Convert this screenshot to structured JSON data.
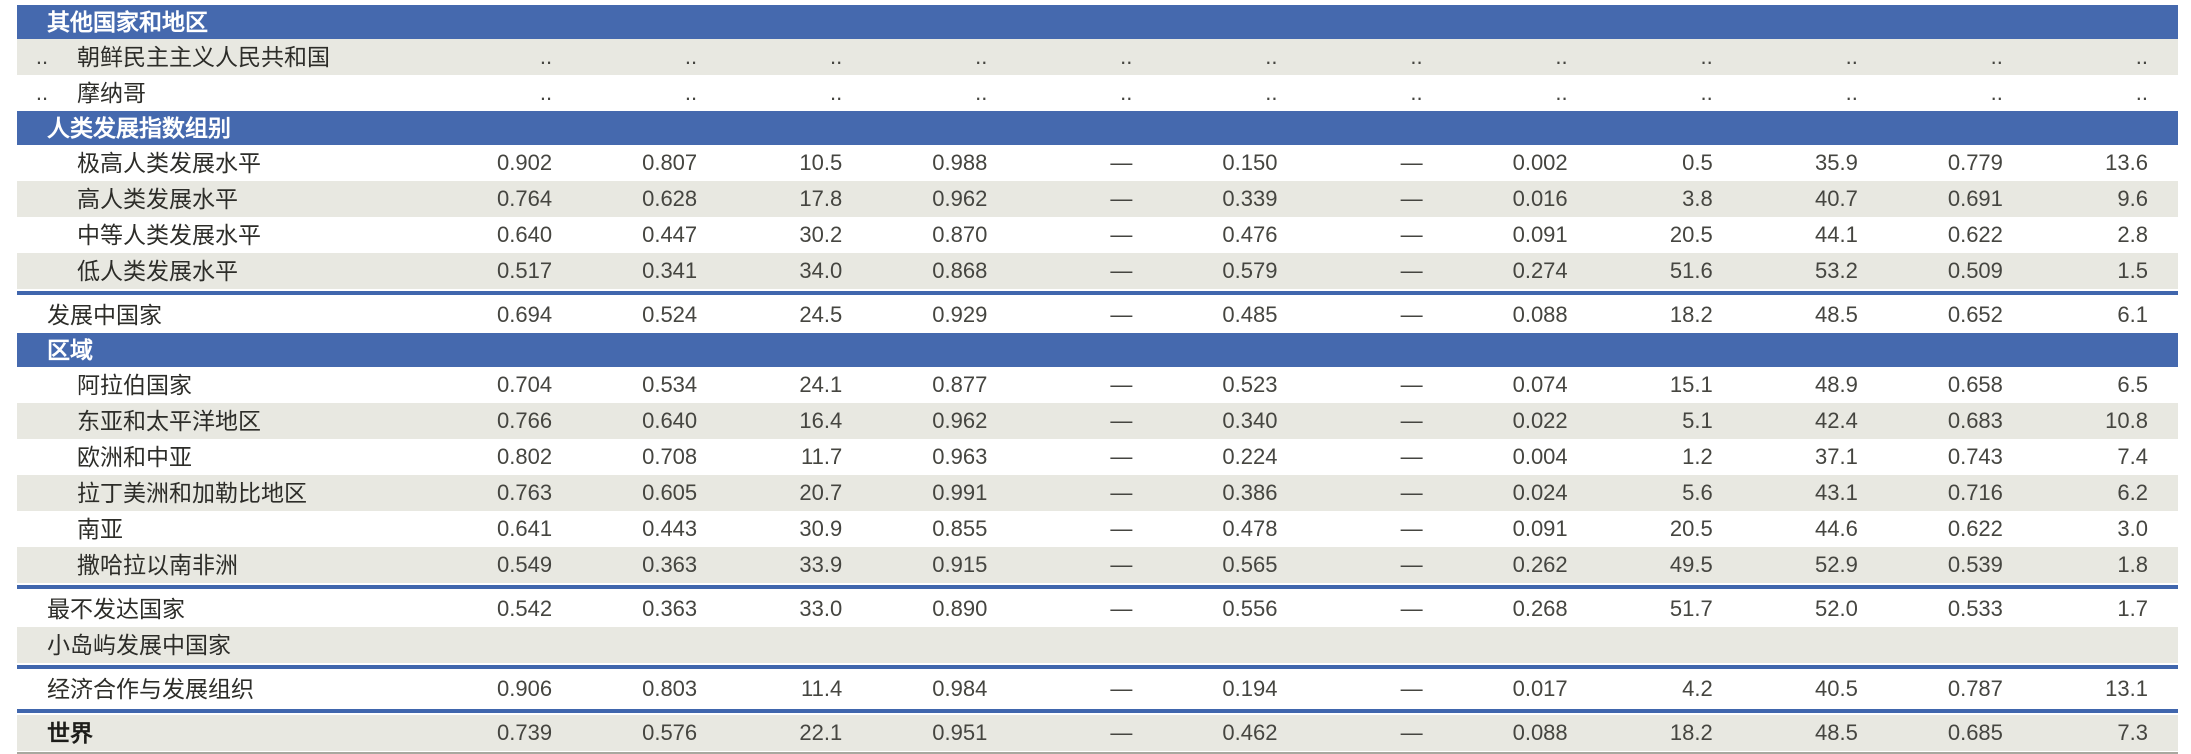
{
  "document": {
    "language": "zh",
    "description_labels": {
      "missing_value": "..",
      "not_available_dash": "—"
    }
  },
  "theme": {
    "band_blue": "#4569ae",
    "separator_blue": "#4066ad",
    "stripe_gray": "#e8e8e1",
    "band_text": "#ffffff",
    "label_color": "#2d2d29",
    "value_color": "#454540",
    "bottom_border": "#a8a89f"
  },
  "table": {
    "columns_count": 12,
    "rows": [
      {
        "type": "band",
        "label": "其他国家和地区"
      },
      {
        "type": "data",
        "stripe": true,
        "indent": 1,
        "rank": "..",
        "label": "朝鲜民主主义人民共和国",
        "values": [
          "..",
          "..",
          "..",
          "..",
          "..",
          "..",
          "..",
          "..",
          "..",
          "..",
          "..",
          ".."
        ]
      },
      {
        "type": "data",
        "stripe": false,
        "indent": 1,
        "rank": "..",
        "label": "摩纳哥",
        "values": [
          "..",
          "..",
          "..",
          "..",
          "..",
          "..",
          "..",
          "..",
          "..",
          "..",
          "..",
          ".."
        ]
      },
      {
        "type": "band",
        "label": "人类发展指数组别"
      },
      {
        "type": "data",
        "stripe": false,
        "indent": 1,
        "rank": "",
        "label": "极高人类发展水平",
        "values": [
          "0.902",
          "0.807",
          "10.5",
          "0.988",
          "—",
          "0.150",
          "—",
          "0.002",
          "0.5",
          "35.9",
          "0.779",
          "13.6"
        ]
      },
      {
        "type": "data",
        "stripe": true,
        "indent": 1,
        "rank": "",
        "label": "高人类发展水平",
        "values": [
          "0.764",
          "0.628",
          "17.8",
          "0.962",
          "—",
          "0.339",
          "—",
          "0.016",
          "3.8",
          "40.7",
          "0.691",
          "9.6"
        ]
      },
      {
        "type": "data",
        "stripe": false,
        "indent": 1,
        "rank": "",
        "label": "中等人类发展水平",
        "values": [
          "0.640",
          "0.447",
          "30.2",
          "0.870",
          "—",
          "0.476",
          "—",
          "0.091",
          "20.5",
          "44.1",
          "0.622",
          "2.8"
        ]
      },
      {
        "type": "data",
        "stripe": true,
        "indent": 1,
        "rank": "",
        "label": "低人类发展水平",
        "values": [
          "0.517",
          "0.341",
          "34.0",
          "0.868",
          "—",
          "0.579",
          "—",
          "0.274",
          "51.6",
          "53.2",
          "0.509",
          "1.5"
        ]
      },
      {
        "type": "separator"
      },
      {
        "type": "data",
        "stripe": false,
        "indent": 0,
        "rank": "",
        "label": "发展中国家",
        "values": [
          "0.694",
          "0.524",
          "24.5",
          "0.929",
          "—",
          "0.485",
          "—",
          "0.088",
          "18.2",
          "48.5",
          "0.652",
          "6.1"
        ]
      },
      {
        "type": "band",
        "label": "区域"
      },
      {
        "type": "data",
        "stripe": false,
        "indent": 1,
        "rank": "",
        "label": "阿拉伯国家",
        "values": [
          "0.704",
          "0.534",
          "24.1",
          "0.877",
          "—",
          "0.523",
          "—",
          "0.074",
          "15.1",
          "48.9",
          "0.658",
          "6.5"
        ]
      },
      {
        "type": "data",
        "stripe": true,
        "indent": 1,
        "rank": "",
        "label": "东亚和太平洋地区",
        "values": [
          "0.766",
          "0.640",
          "16.4",
          "0.962",
          "—",
          "0.340",
          "—",
          "0.022",
          "5.1",
          "42.4",
          "0.683",
          "10.8"
        ]
      },
      {
        "type": "data",
        "stripe": false,
        "indent": 1,
        "rank": "",
        "label": "欧洲和中亚",
        "values": [
          "0.802",
          "0.708",
          "11.7",
          "0.963",
          "—",
          "0.224",
          "—",
          "0.004",
          "1.2",
          "37.1",
          "0.743",
          "7.4"
        ]
      },
      {
        "type": "data",
        "stripe": true,
        "indent": 1,
        "rank": "",
        "label": "拉丁美洲和加勒比地区",
        "values": [
          "0.763",
          "0.605",
          "20.7",
          "0.991",
          "—",
          "0.386",
          "—",
          "0.024",
          "5.6",
          "43.1",
          "0.716",
          "6.2"
        ]
      },
      {
        "type": "data",
        "stripe": false,
        "indent": 1,
        "rank": "",
        "label": "南亚",
        "values": [
          "0.641",
          "0.443",
          "30.9",
          "0.855",
          "—",
          "0.478",
          "—",
          "0.091",
          "20.5",
          "44.6",
          "0.622",
          "3.0"
        ]
      },
      {
        "type": "data",
        "stripe": true,
        "indent": 1,
        "rank": "",
        "label": "撒哈拉以南非洲",
        "values": [
          "0.549",
          "0.363",
          "33.9",
          "0.915",
          "—",
          "0.565",
          "—",
          "0.262",
          "49.5",
          "52.9",
          "0.539",
          "1.8"
        ]
      },
      {
        "type": "separator"
      },
      {
        "type": "data",
        "stripe": false,
        "indent": 0,
        "rank": "",
        "label": "最不发达国家",
        "values": [
          "0.542",
          "0.363",
          "33.0",
          "0.890",
          "—",
          "0.556",
          "—",
          "0.268",
          "51.7",
          "52.0",
          "0.533",
          "1.7"
        ]
      },
      {
        "type": "data",
        "stripe": true,
        "indent": 0,
        "rank": "",
        "label": "小岛屿发展中国家",
        "values": [
          "",
          "",
          "",
          "",
          "",
          "",
          "",
          "",
          "",
          "",
          "",
          ""
        ]
      },
      {
        "type": "separator"
      },
      {
        "type": "data",
        "stripe": false,
        "indent": 0,
        "rank": "",
        "label": "经济合作与发展组织",
        "values": [
          "0.906",
          "0.803",
          "11.4",
          "0.984",
          "—",
          "0.194",
          "—",
          "0.017",
          "4.2",
          "40.5",
          "0.787",
          "13.1"
        ]
      },
      {
        "type": "separator"
      },
      {
        "type": "data",
        "stripe": true,
        "indent": 0,
        "rank": "",
        "bold": true,
        "label": "世界",
        "values": [
          "0.739",
          "0.576",
          "22.1",
          "0.951",
          "—",
          "0.462",
          "—",
          "0.088",
          "18.2",
          "48.5",
          "0.685",
          "7.3"
        ]
      }
    ]
  }
}
